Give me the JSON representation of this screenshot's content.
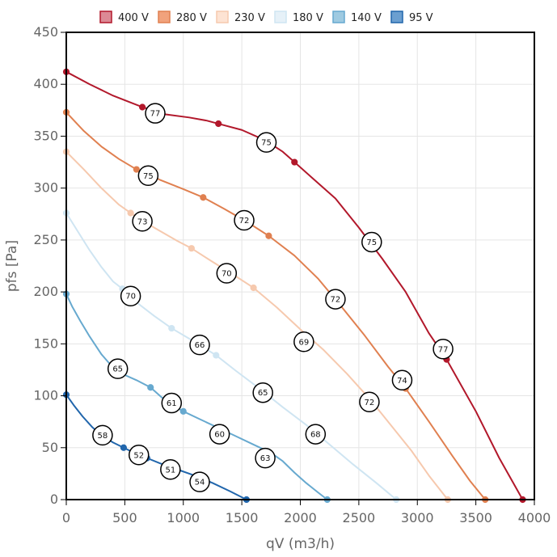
{
  "chart_data": {
    "type": "line",
    "title": "",
    "xlabel": "qV (m3/h)",
    "ylabel": "pfs [Pa]",
    "xlim": [
      0,
      4000
    ],
    "ylim": [
      0,
      450
    ],
    "xticks": [
      "0",
      "500",
      "1000",
      "1500",
      "2000",
      "2500",
      "3000",
      "3500",
      "4000"
    ],
    "yticks": [
      "0",
      "50",
      "100",
      "150",
      "200",
      "250",
      "300",
      "350",
      "400",
      "450"
    ],
    "grid": true,
    "legend_position": "top",
    "series": [
      {
        "name": "400 V",
        "color": "#b2182b",
        "fill": "#dc8a95",
        "points": [
          [
            0,
            412
          ],
          [
            650,
            378
          ],
          [
            1300,
            362
          ],
          [
            1950,
            325
          ],
          [
            3250,
            135
          ],
          [
            3900,
            0
          ]
        ],
        "curve": [
          [
            0,
            412
          ],
          [
            200,
            400
          ],
          [
            400,
            389
          ],
          [
            650,
            378
          ],
          [
            850,
            371
          ],
          [
            1050,
            368
          ],
          [
            1200,
            365
          ],
          [
            1300,
            362
          ],
          [
            1500,
            356
          ],
          [
            1700,
            346
          ],
          [
            1850,
            335
          ],
          [
            1950,
            325
          ],
          [
            2100,
            310
          ],
          [
            2300,
            290
          ],
          [
            2500,
            262
          ],
          [
            2700,
            232
          ],
          [
            2900,
            200
          ],
          [
            3100,
            160
          ],
          [
            3250,
            135
          ],
          [
            3500,
            85
          ],
          [
            3700,
            40
          ],
          [
            3900,
            0
          ]
        ]
      },
      {
        "name": "280 V",
        "color": "#e08050",
        "fill": "#f1a27c",
        "points": [
          [
            0,
            373
          ],
          [
            600,
            318
          ],
          [
            1170,
            291
          ],
          [
            1730,
            254
          ],
          [
            2900,
            107
          ],
          [
            3580,
            0
          ]
        ],
        "curve": [
          [
            0,
            373
          ],
          [
            150,
            355
          ],
          [
            300,
            340
          ],
          [
            450,
            328
          ],
          [
            600,
            318
          ],
          [
            800,
            308
          ],
          [
            1000,
            299
          ],
          [
            1170,
            291
          ],
          [
            1350,
            280
          ],
          [
            1550,
            267
          ],
          [
            1730,
            254
          ],
          [
            1950,
            235
          ],
          [
            2150,
            213
          ],
          [
            2350,
            186
          ],
          [
            2550,
            158
          ],
          [
            2750,
            128
          ],
          [
            2900,
            107
          ],
          [
            3100,
            75
          ],
          [
            3300,
            42
          ],
          [
            3450,
            18
          ],
          [
            3580,
            0
          ]
        ]
      },
      {
        "name": "230 V",
        "color": "#f6c9ae",
        "fill": "#fde3d3",
        "points": [
          [
            0,
            335
          ],
          [
            550,
            276
          ],
          [
            1070,
            242
          ],
          [
            1600,
            204
          ],
          [
            3260,
            0
          ]
        ],
        "curve": [
          [
            0,
            335
          ],
          [
            150,
            318
          ],
          [
            300,
            300
          ],
          [
            450,
            284
          ],
          [
            550,
            276
          ],
          [
            750,
            262
          ],
          [
            950,
            249
          ],
          [
            1070,
            242
          ],
          [
            1250,
            229
          ],
          [
            1450,
            215
          ],
          [
            1600,
            204
          ],
          [
            1800,
            185
          ],
          [
            2000,
            164
          ],
          [
            2200,
            144
          ],
          [
            2400,
            121
          ],
          [
            2600,
            96
          ],
          [
            2800,
            68
          ],
          [
            2950,
            47
          ],
          [
            3100,
            23
          ],
          [
            3260,
            0
          ]
        ]
      },
      {
        "name": "180 V",
        "color": "#cfe5f2",
        "fill": "#e6f1f8",
        "points": [
          [
            0,
            276
          ],
          [
            480,
            203
          ],
          [
            900,
            165
          ],
          [
            1280,
            139
          ],
          [
            2820,
            0
          ]
        ],
        "curve": [
          [
            0,
            276
          ],
          [
            100,
            258
          ],
          [
            200,
            240
          ],
          [
            300,
            224
          ],
          [
            400,
            210
          ],
          [
            480,
            203
          ],
          [
            600,
            190
          ],
          [
            750,
            177
          ],
          [
            900,
            165
          ],
          [
            1050,
            155
          ],
          [
            1180,
            146
          ],
          [
            1280,
            139
          ],
          [
            1450,
            124
          ],
          [
            1650,
            107
          ],
          [
            1850,
            89
          ],
          [
            2050,
            72
          ],
          [
            2250,
            53
          ],
          [
            2450,
            34
          ],
          [
            2650,
            16
          ],
          [
            2820,
            0
          ]
        ]
      },
      {
        "name": "140 V",
        "color": "#67a9cf",
        "fill": "#9ecae1",
        "points": [
          [
            0,
            198
          ],
          [
            720,
            108
          ],
          [
            1000,
            85
          ],
          [
            2230,
            0
          ]
        ],
        "curve": [
          [
            0,
            198
          ],
          [
            50,
            186
          ],
          [
            120,
            172
          ],
          [
            200,
            157
          ],
          [
            300,
            140
          ],
          [
            400,
            127
          ],
          [
            500,
            120
          ],
          [
            600,
            115
          ],
          [
            720,
            108
          ],
          [
            820,
            98
          ],
          [
            920,
            90
          ],
          [
            1000,
            85
          ],
          [
            1150,
            77
          ],
          [
            1300,
            69
          ],
          [
            1450,
            61
          ],
          [
            1600,
            53
          ],
          [
            1750,
            45
          ],
          [
            1850,
            37
          ],
          [
            1950,
            26
          ],
          [
            2050,
            16
          ],
          [
            2150,
            7
          ],
          [
            2230,
            0
          ]
        ]
      },
      {
        "name": "95 V",
        "color": "#2166ac",
        "fill": "#6b9fd0",
        "points": [
          [
            0,
            101
          ],
          [
            490,
            50
          ],
          [
            690,
            40
          ],
          [
            1540,
            0
          ]
        ],
        "curve": [
          [
            0,
            101
          ],
          [
            70,
            90
          ],
          [
            140,
            80
          ],
          [
            220,
            70
          ],
          [
            300,
            62
          ],
          [
            400,
            55
          ],
          [
            490,
            50
          ],
          [
            580,
            45
          ],
          [
            690,
            40
          ],
          [
            800,
            35
          ],
          [
            950,
            29
          ],
          [
            1100,
            23
          ],
          [
            1250,
            16
          ],
          [
            1400,
            8
          ],
          [
            1540,
            0
          ]
        ]
      }
    ],
    "efficiency_labels": [
      {
        "label": "77",
        "x": 760,
        "y": 372
      },
      {
        "label": "75",
        "x": 1710,
        "y": 344
      },
      {
        "label": "75",
        "x": 2610,
        "y": 248
      },
      {
        "label": "77",
        "x": 3220,
        "y": 145
      },
      {
        "label": "75",
        "x": 700,
        "y": 312
      },
      {
        "label": "72",
        "x": 1520,
        "y": 269
      },
      {
        "label": "72",
        "x": 2300,
        "y": 193
      },
      {
        "label": "74",
        "x": 2870,
        "y": 115
      },
      {
        "label": "73",
        "x": 650,
        "y": 268
      },
      {
        "label": "70",
        "x": 1370,
        "y": 218
      },
      {
        "label": "69",
        "x": 2030,
        "y": 152
      },
      {
        "label": "72",
        "x": 2590,
        "y": 94
      },
      {
        "label": "70",
        "x": 550,
        "y": 196
      },
      {
        "label": "66",
        "x": 1140,
        "y": 149
      },
      {
        "label": "65",
        "x": 1680,
        "y": 103
      },
      {
        "label": "68",
        "x": 2130,
        "y": 63
      },
      {
        "label": "65",
        "x": 440,
        "y": 126
      },
      {
        "label": "61",
        "x": 900,
        "y": 93
      },
      {
        "label": "60",
        "x": 1310,
        "y": 63
      },
      {
        "label": "63",
        "x": 1700,
        "y": 40
      },
      {
        "label": "58",
        "x": 310,
        "y": 62
      },
      {
        "label": "52",
        "x": 620,
        "y": 43
      },
      {
        "label": "51",
        "x": 890,
        "y": 29
      },
      {
        "label": "54",
        "x": 1140,
        "y": 17
      }
    ]
  }
}
